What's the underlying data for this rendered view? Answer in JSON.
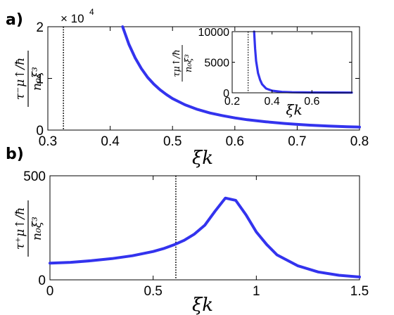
{
  "figure": {
    "panel_a_label": "a)",
    "panel_b_label": "b)"
  },
  "chart_data": [
    {
      "panel": "a",
      "type": "line",
      "color": "#3333ee",
      "xlabel": "ξk",
      "ylabel": "τ⁻μ↑/ħ / n₀ξ³",
      "xlim": [
        0.3,
        0.8
      ],
      "ylim": [
        0,
        20000
      ],
      "y_multiplier": "× 10",
      "y_multiplier_exp": "4",
      "xticks": [
        0.3,
        0.4,
        0.5,
        0.6,
        0.7,
        0.8
      ],
      "xtick_labels": [
        "0.3",
        "0.4",
        "0.5",
        "0.6",
        "0.7",
        "0.8"
      ],
      "yticks": [
        0,
        10000,
        20000
      ],
      "ytick_labels": [
        "0",
        "1",
        "2"
      ],
      "vline_x": 0.325,
      "x": [
        0.42,
        0.43,
        0.44,
        0.45,
        0.46,
        0.47,
        0.48,
        0.49,
        0.5,
        0.52,
        0.54,
        0.56,
        0.58,
        0.6,
        0.62,
        0.65,
        0.68,
        0.7,
        0.72,
        0.75,
        0.78,
        0.8
      ],
      "y": [
        20000,
        16600,
        14000,
        11900,
        10200,
        8900,
        7800,
        6900,
        6100,
        4900,
        4000,
        3300,
        2800,
        2350,
        2000,
        1600,
        1280,
        1100,
        950,
        780,
        650,
        580
      ]
    },
    {
      "panel": "a-inset",
      "type": "line",
      "color": "#3333ee",
      "xlabel": "ξk",
      "ylabel": "τμ↑/ħ / n₀ξ³",
      "xlim": [
        0.2,
        0.8
      ],
      "ylim": [
        0,
        10000
      ],
      "xticks": [
        0.2,
        0.4,
        0.6
      ],
      "xtick_labels": [
        "0.2",
        "0.4",
        "0.6"
      ],
      "yticks": [
        0,
        5000,
        10000
      ],
      "ytick_labels": [
        "0",
        "5000",
        "10000"
      ],
      "vline_x": 0.28,
      "x": [
        0.31,
        0.315,
        0.32,
        0.33,
        0.34,
        0.35,
        0.37,
        0.4,
        0.45,
        0.5,
        0.6,
        0.7,
        0.8
      ],
      "y": [
        10000,
        7200,
        5200,
        3200,
        2100,
        1400,
        700,
        350,
        150,
        90,
        60,
        45,
        40
      ]
    },
    {
      "panel": "b",
      "type": "line",
      "color": "#3333ee",
      "xlabel": "ξk",
      "ylabel": "τ⁺μ↑/ħ / n₀ξ³",
      "xlim": [
        0,
        1.5
      ],
      "ylim": [
        0,
        500
      ],
      "xticks": [
        0,
        0.5,
        1,
        1.5
      ],
      "xtick_labels": [
        "0",
        "0.5",
        "1",
        "1.5"
      ],
      "yticks": [
        0,
        500
      ],
      "ytick_labels": [
        "0",
        "500"
      ],
      "vline_x": 0.61,
      "x": [
        0.0,
        0.1,
        0.2,
        0.3,
        0.4,
        0.5,
        0.55,
        0.6,
        0.65,
        0.7,
        0.75,
        0.8,
        0.85,
        0.9,
        0.95,
        1.0,
        1.05,
        1.1,
        1.2,
        1.3,
        1.4,
        1.5
      ],
      "y": [
        80,
        84,
        92,
        102,
        116,
        136,
        150,
        168,
        190,
        220,
        262,
        330,
        393,
        382,
        312,
        230,
        170,
        120,
        68,
        38,
        22,
        14
      ]
    }
  ]
}
